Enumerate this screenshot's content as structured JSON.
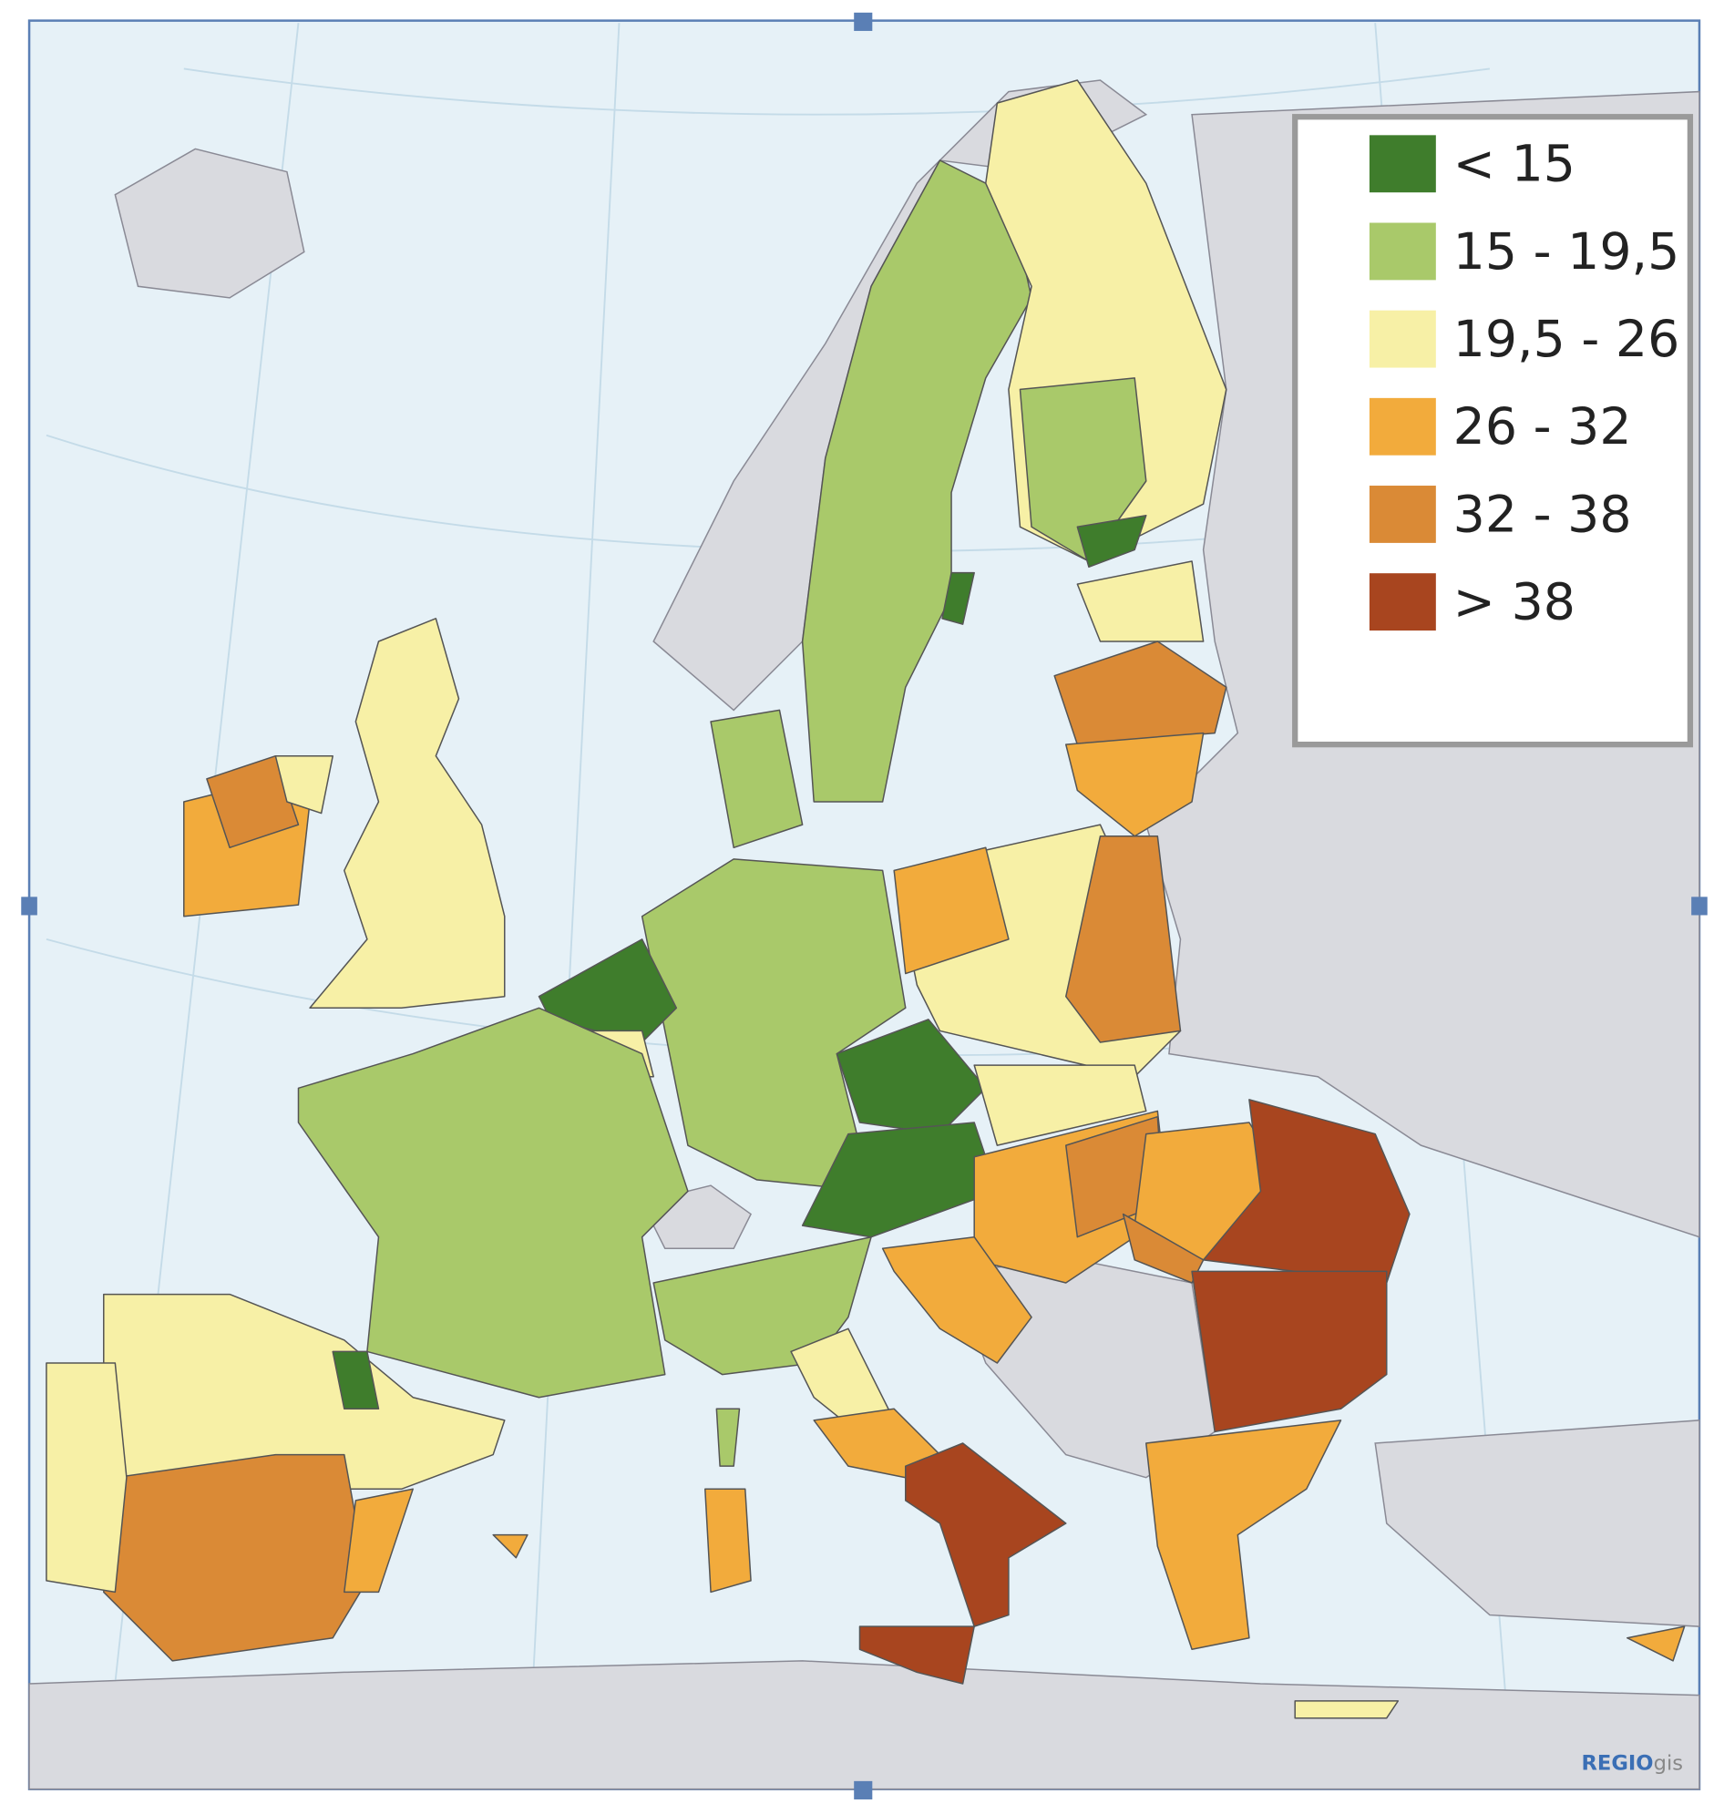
{
  "legend": {
    "items": [
      {
        "label": "< 15",
        "color": "#3f7d2c"
      },
      {
        "label": "15 - 19,5",
        "color": "#a9c96a"
      },
      {
        "label": "19,5 - 26",
        "color": "#f7f0a6"
      },
      {
        "label": "26 - 32",
        "color": "#f2ab3c"
      },
      {
        "label": "32 - 38",
        "color": "#da8a36"
      },
      {
        "label": "> 38",
        "color": "#a8451f"
      }
    ]
  },
  "credit": {
    "brand": "REGIO",
    "suffix": "gis"
  }
}
